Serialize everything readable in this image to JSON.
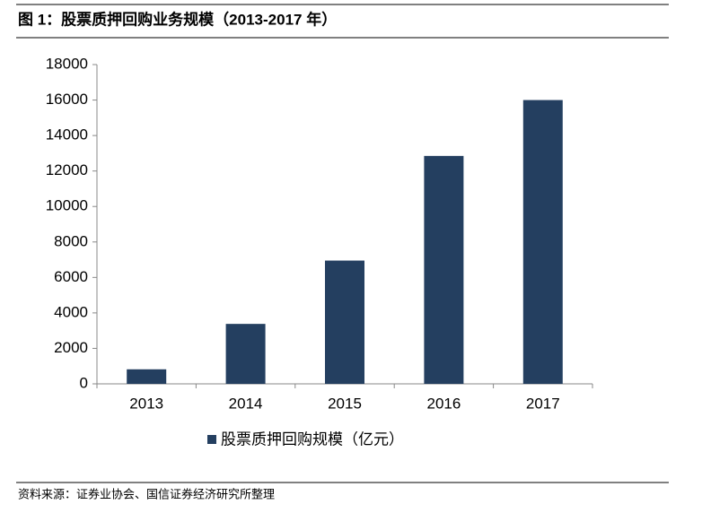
{
  "chart_data": {
    "type": "bar",
    "title": "图 1：股票质押回购业务规模（2013-2017 年）",
    "source": "资料来源：证券业协会、国信证券经济研究所整理",
    "categories": [
      "2013",
      "2014",
      "2015",
      "2016",
      "2017"
    ],
    "series": [
      {
        "name": "股票质押回购规模（亿元）",
        "color": "#243f60",
        "values": [
          820,
          3380,
          6950,
          12850,
          16000
        ]
      }
    ],
    "ylim": [
      0,
      18000
    ],
    "yticks": [
      0,
      2000,
      4000,
      6000,
      8000,
      10000,
      12000,
      14000,
      16000,
      18000
    ],
    "grid": false,
    "legend": "bottom"
  }
}
